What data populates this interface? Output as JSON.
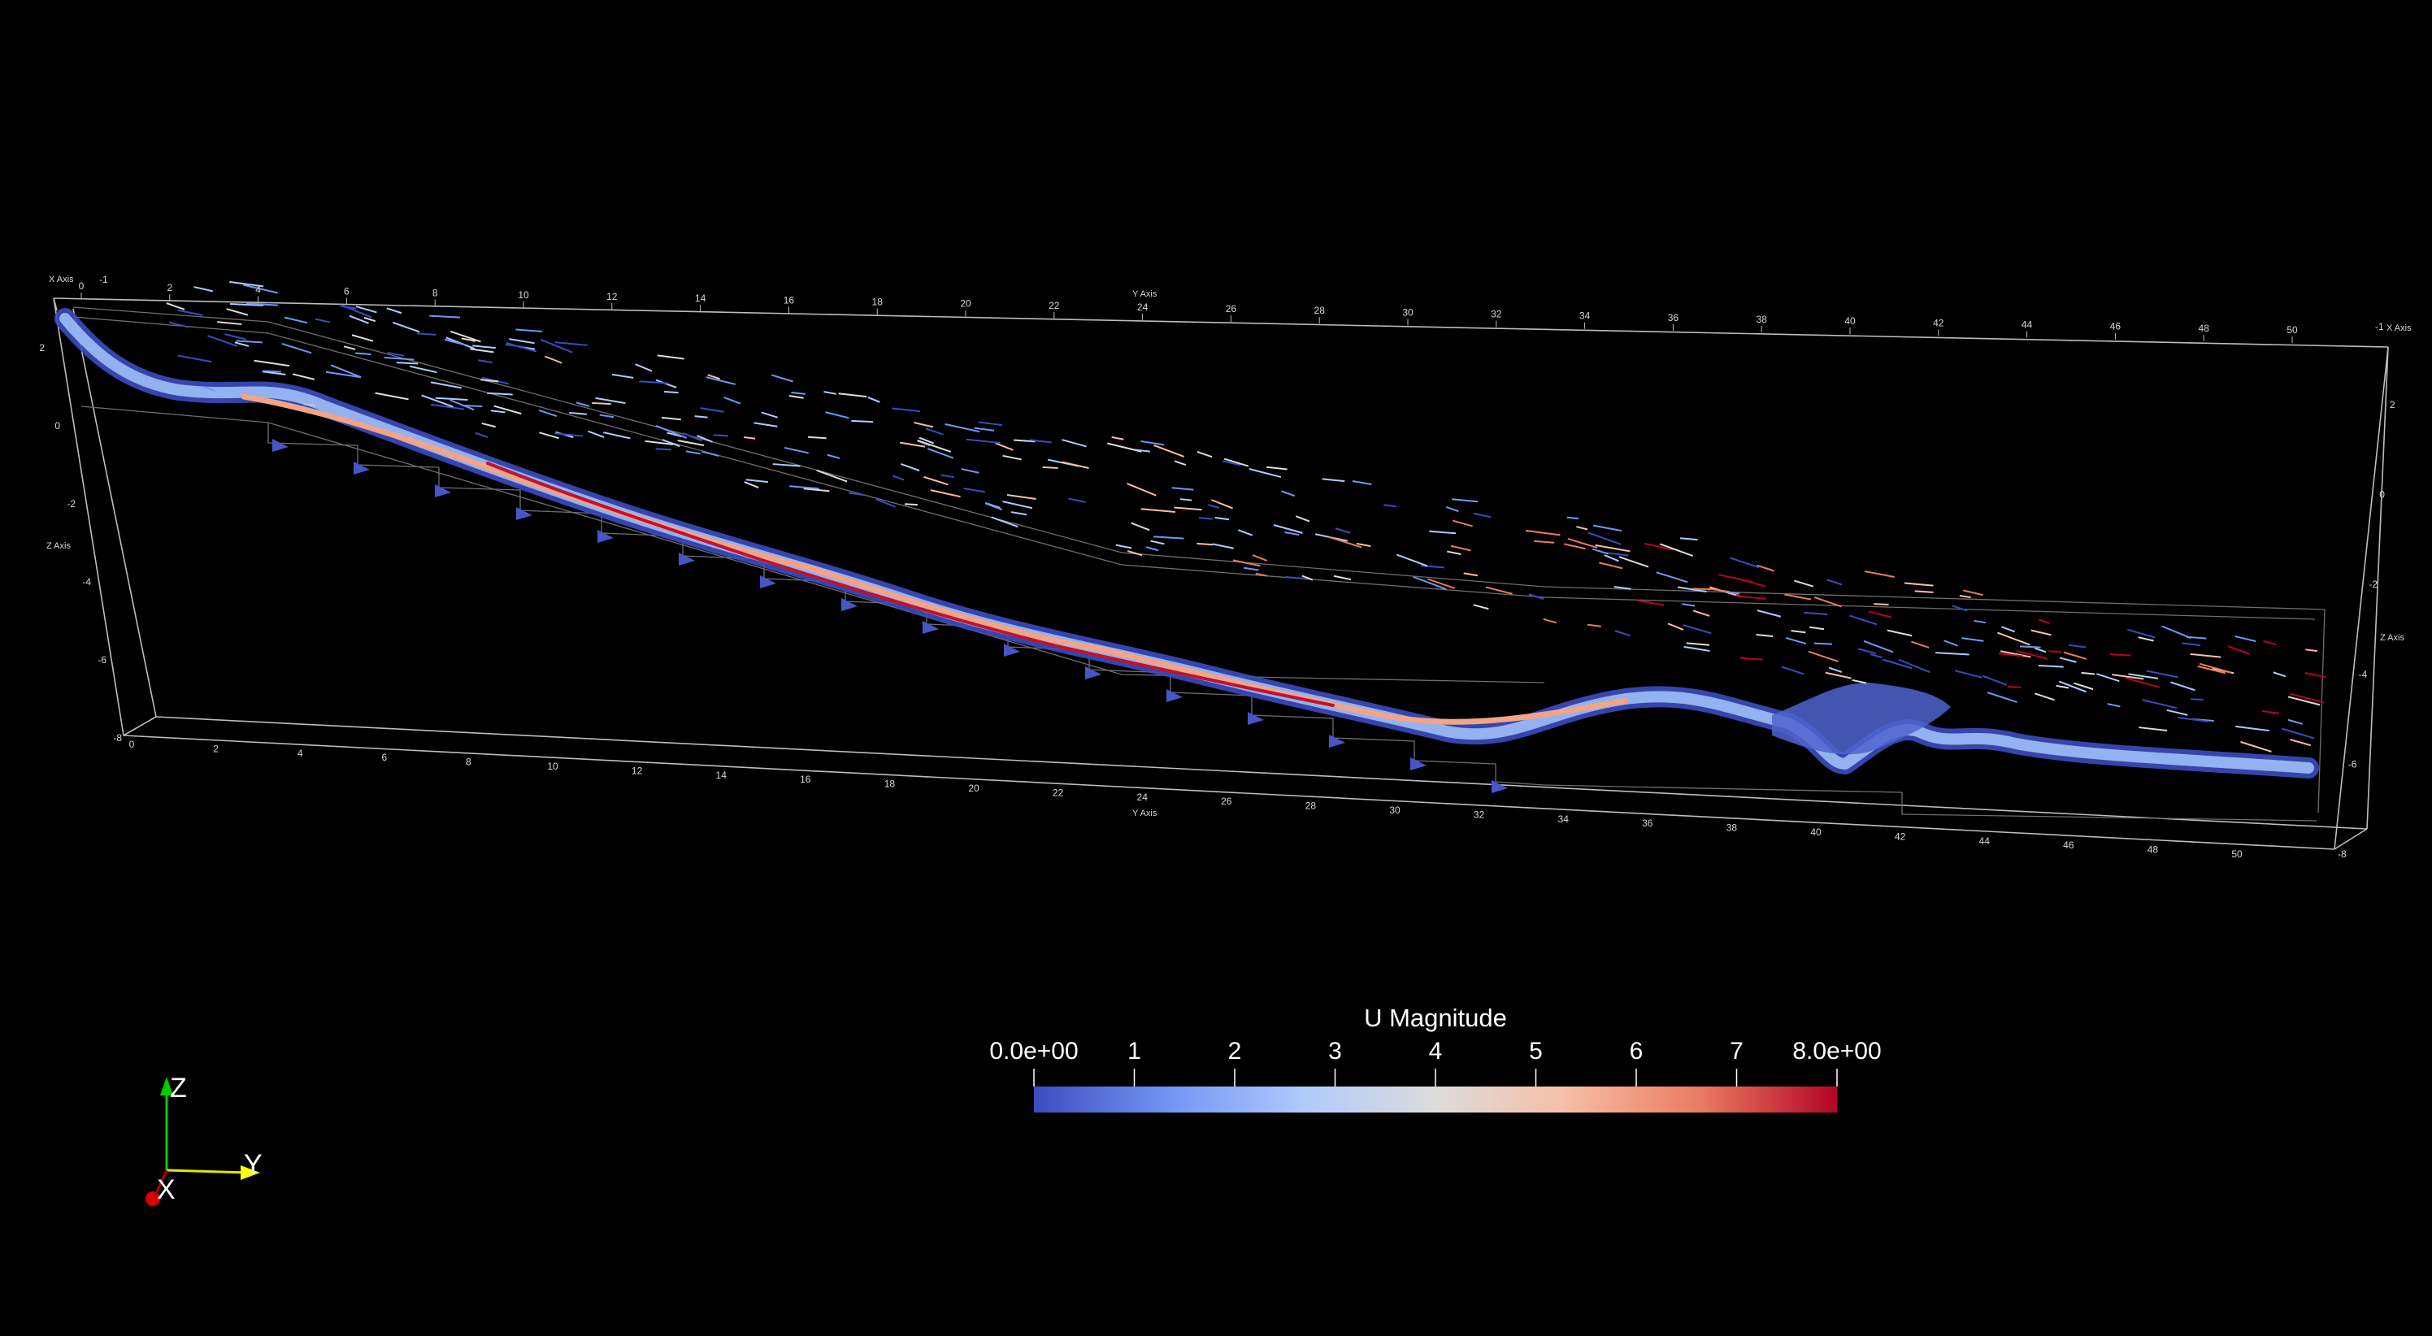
{
  "viewer": {
    "background": "#000000",
    "grid_color": "#c8c8c8"
  },
  "colorbar": {
    "title": "U Magnitude",
    "min_label": "0.0e+00",
    "max_label": "8.0e+00",
    "tick_labels": [
      "1",
      "2",
      "3",
      "4",
      "5",
      "6",
      "7"
    ],
    "range": [
      0,
      8
    ],
    "colors": [
      "#3b4cc0",
      "#7396f5",
      "#b0cbfc",
      "#dddcdb",
      "#f6bfa6",
      "#ea7b60",
      "#b40426"
    ]
  },
  "axes_grid": {
    "x_title": "X Axis",
    "y_title": "Y Axis",
    "z_title": "Z Axis",
    "y_ticks_top": [
      "0",
      "2",
      "4",
      "6",
      "8",
      "10",
      "12",
      "14",
      "16",
      "18",
      "20",
      "22",
      "24",
      "26",
      "28",
      "30",
      "32",
      "34",
      "36",
      "38",
      "40",
      "42",
      "44",
      "46",
      "48",
      "50"
    ],
    "y_ticks_bottom": [
      "0",
      "2",
      "4",
      "6",
      "8",
      "10",
      "12",
      "14",
      "16",
      "18",
      "20",
      "22",
      "24",
      "26",
      "28",
      "30",
      "32",
      "34",
      "36",
      "38",
      "40",
      "42",
      "44",
      "46",
      "48",
      "50"
    ],
    "z_ticks_left": [
      "2",
      "0",
      "-2",
      "-4",
      "-6",
      "-8"
    ],
    "z_ticks_right": [
      "2",
      "0",
      "-2",
      "-4",
      "-6",
      "-8"
    ],
    "x_tick_top_left": "-1",
    "x_tick_top_right": "-1"
  },
  "orientation_widget": {
    "z_label": "Z",
    "y_label": "Y",
    "x_label": "X",
    "z_color": "#00cc00",
    "y_color": "#ffff00",
    "x_color": "#dd0000"
  }
}
